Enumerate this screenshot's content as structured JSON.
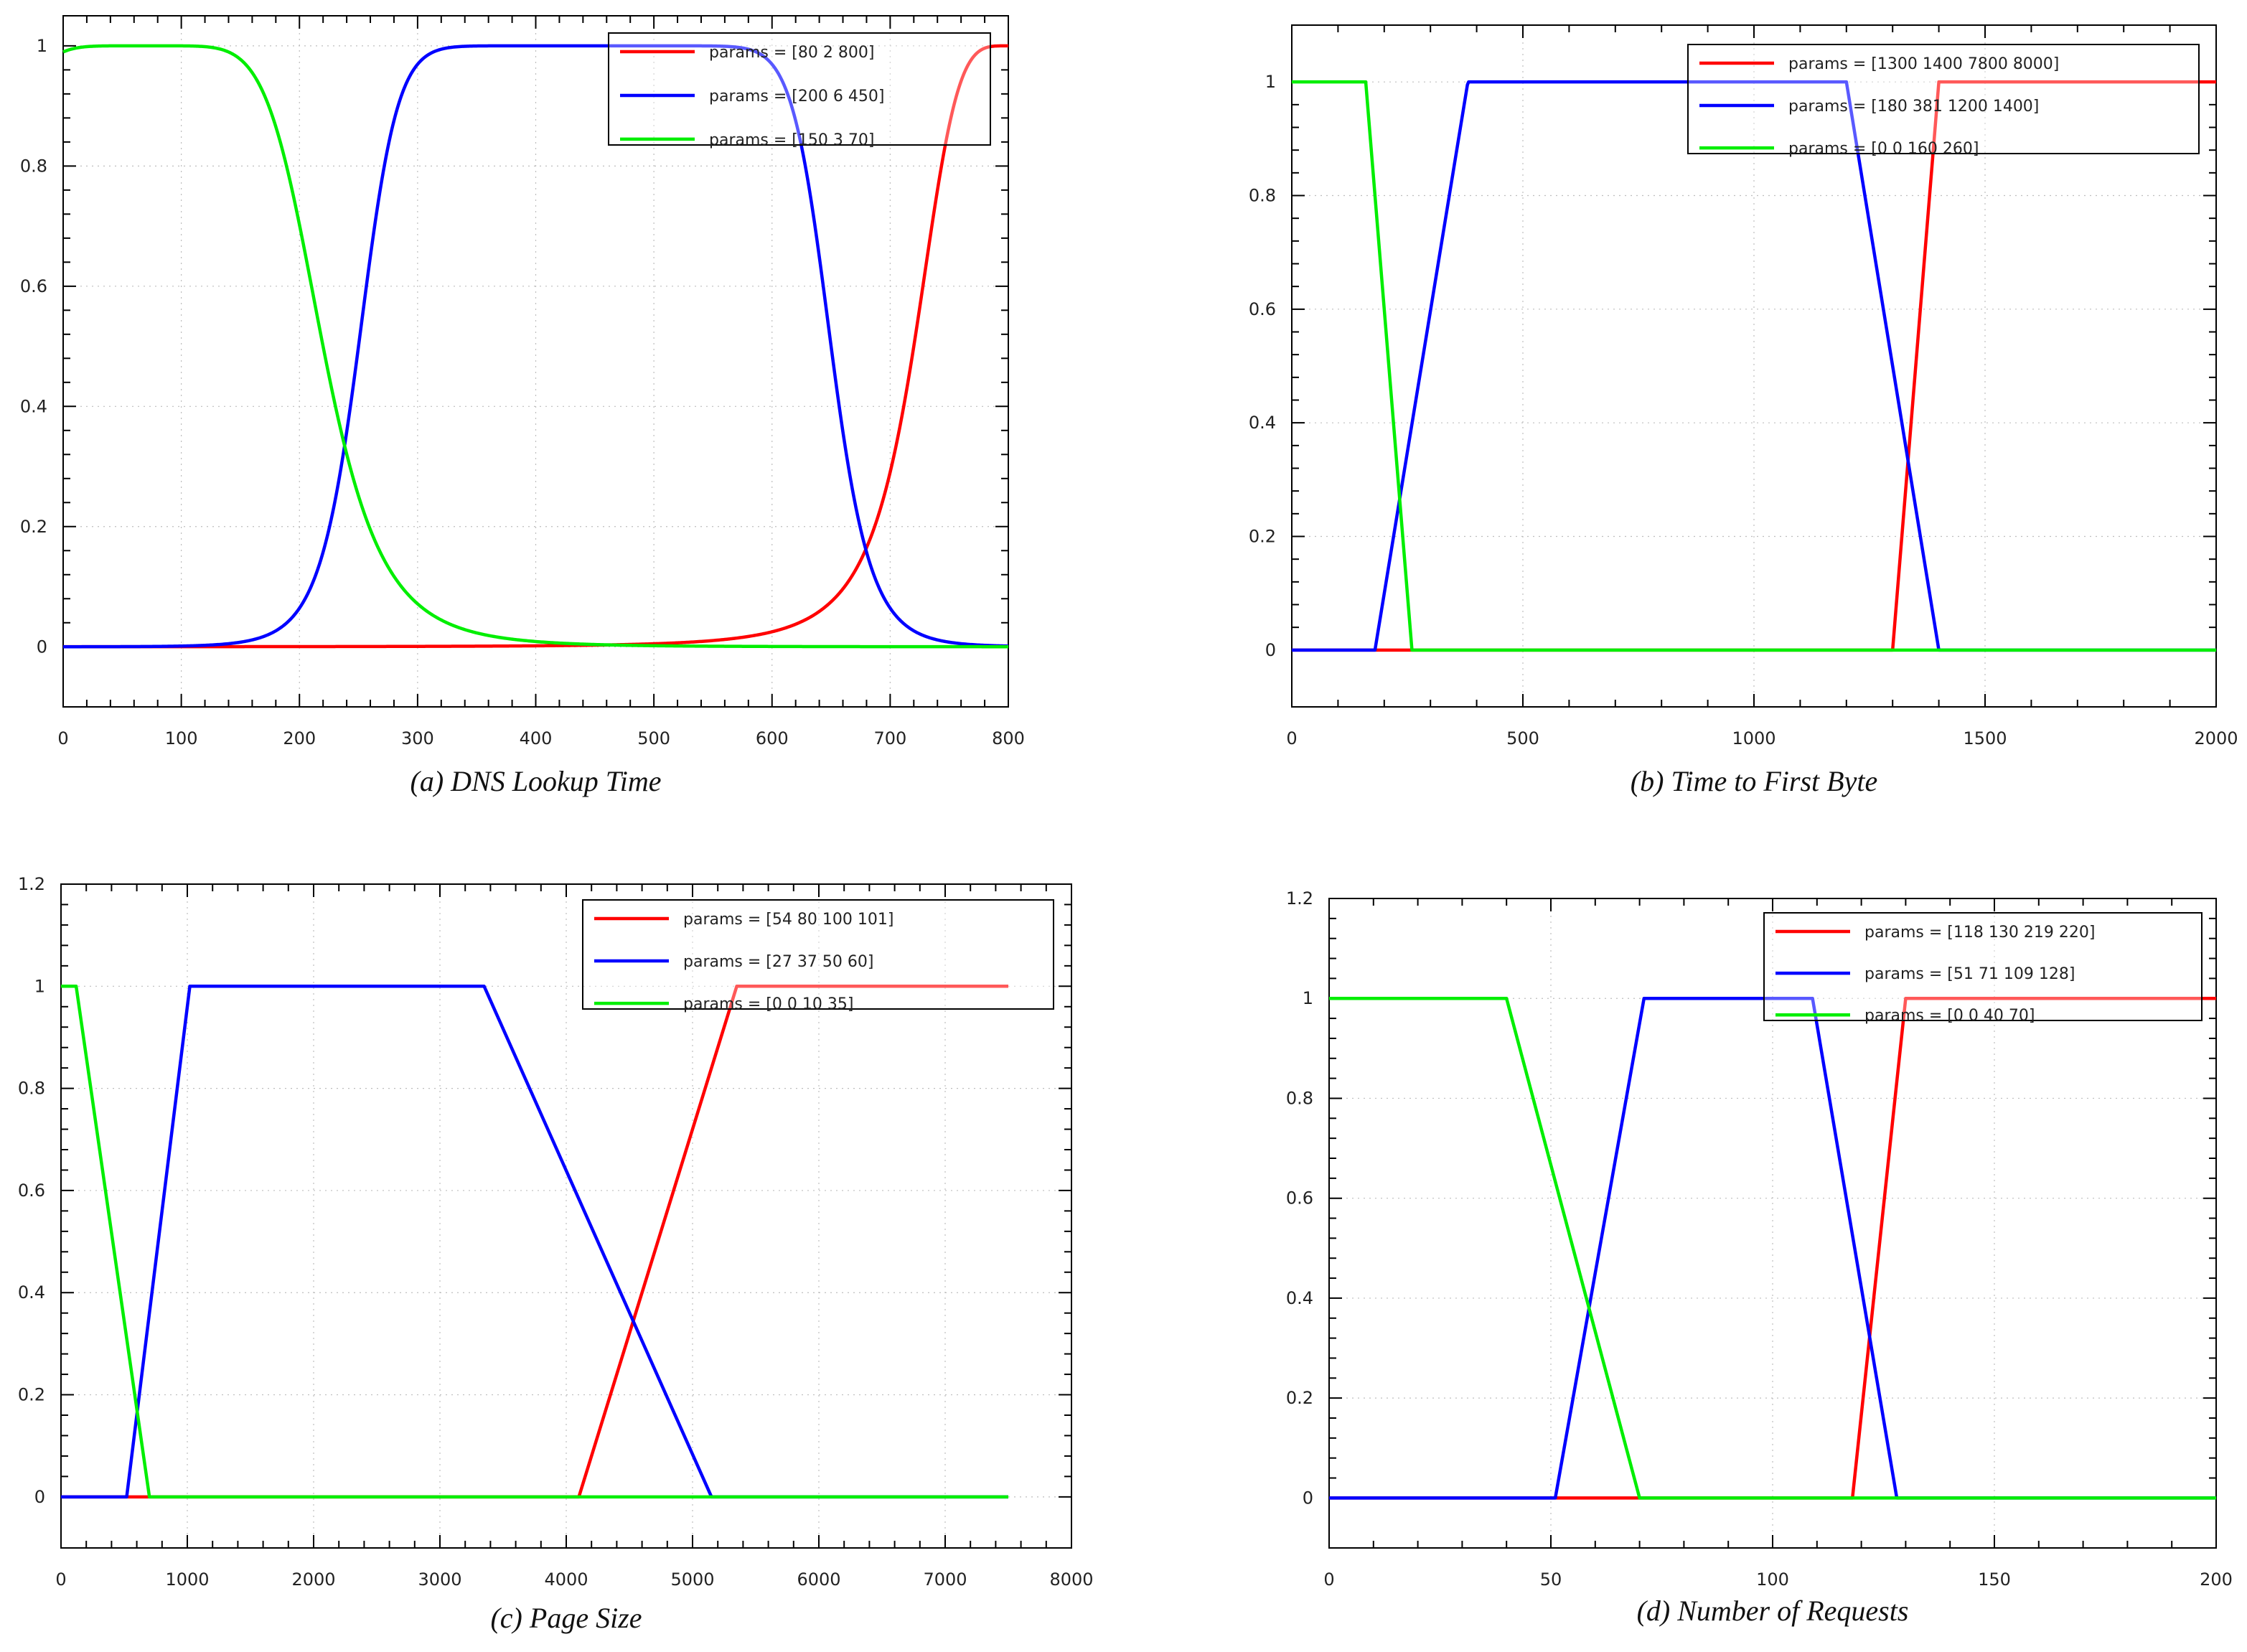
{
  "chart_data": [
    {
      "type": "line",
      "caption": "(a) DNS Lookup Time",
      "xlim": [
        0,
        800
      ],
      "ylim": [
        -0.1,
        1.05
      ],
      "xticks": [
        0,
        100,
        200,
        300,
        400,
        500,
        600,
        700,
        800
      ],
      "yticks": [
        0,
        0.2,
        0.4,
        0.6,
        0.8,
        1
      ],
      "legend_position": "top-right",
      "membership": "sigmoid-bell",
      "series": [
        {
          "name": "params = [80 2 800]",
          "color": "#ff0000",
          "kind": "gbell",
          "params": [
            80,
            2,
            800
          ]
        },
        {
          "name": "params = [200 6 450]",
          "color": "#0000ff",
          "kind": "gbell",
          "params": [
            200,
            6,
            450
          ]
        },
        {
          "name": "params = [150 3 70]",
          "color": "#00ee00",
          "kind": "gbell",
          "params": [
            150,
            3,
            70
          ]
        }
      ]
    },
    {
      "type": "line",
      "caption": "(b) Time to First Byte",
      "xlim": [
        0,
        2000
      ],
      "ylim": [
        -0.1,
        1.1
      ],
      "xticks": [
        0,
        500,
        1000,
        1500,
        2000
      ],
      "yticks": [
        0,
        0.2,
        0.4,
        0.6,
        0.8,
        1
      ],
      "legend_position": "top-right",
      "membership": "trapezoid",
      "series": [
        {
          "name": "params = [1300 1400 7800 8000]",
          "color": "#ff0000",
          "kind": "trap",
          "params": [
            1300,
            1400,
            7800,
            8000
          ]
        },
        {
          "name": "params = [180 381 1200 1400]",
          "color": "#0000ff",
          "kind": "trap",
          "params": [
            180,
            381,
            1200,
            1400
          ]
        },
        {
          "name": "params = [0 0 160 260]",
          "color": "#00ee00",
          "kind": "trap",
          "params": [
            0,
            0,
            160,
            260
          ]
        }
      ]
    },
    {
      "type": "line",
      "caption": "(c) Page Size",
      "xlim": [
        0,
        8000
      ],
      "ylim": [
        -0.1,
        1.2
      ],
      "xticks": [
        0,
        1000,
        2000,
        3000,
        4000,
        5000,
        6000,
        7000,
        8000
      ],
      "yticks": [
        0,
        0.2,
        0.4,
        0.6,
        0.8,
        1,
        1.2
      ],
      "legend_position": "top-right",
      "membership": "trapezoid",
      "series": [
        {
          "name": "params = [54 80 100 101]",
          "color": "#ff0000",
          "kind": "poly",
          "points": [
            [
              0,
              0
            ],
            [
              4100,
              0
            ],
            [
              5350,
              1
            ],
            [
              7500,
              1
            ]
          ]
        },
        {
          "name": "params = [27 37 50 60]",
          "color": "#0000ff",
          "kind": "poly",
          "points": [
            [
              0,
              0
            ],
            [
              520,
              0
            ],
            [
              1020,
              1
            ],
            [
              3350,
              1
            ],
            [
              5150,
              0
            ],
            [
              7500,
              0
            ]
          ]
        },
        {
          "name": "params = [0 0 10 35]",
          "color": "#00ee00",
          "kind": "poly",
          "points": [
            [
              0,
              1
            ],
            [
              120,
              1
            ],
            [
              700,
              0
            ],
            [
              7500,
              0
            ]
          ]
        }
      ]
    },
    {
      "type": "line",
      "caption": "(d) Number of Requests",
      "xlim": [
        0,
        200
      ],
      "ylim": [
        -0.1,
        1.2
      ],
      "xticks": [
        0,
        50,
        100,
        150,
        200
      ],
      "yticks": [
        0,
        0.2,
        0.4,
        0.6,
        0.8,
        1,
        1.2
      ],
      "legend_position": "top-right",
      "membership": "trapezoid",
      "series": [
        {
          "name": "params = [118 130 219 220]",
          "color": "#ff0000",
          "kind": "trap",
          "params": [
            118,
            130,
            219,
            220
          ]
        },
        {
          "name": "params = [51 71 109 128]",
          "color": "#0000ff",
          "kind": "trap",
          "params": [
            51,
            71,
            109,
            128
          ]
        },
        {
          "name": "params = [0 0 40 70]",
          "color": "#00ee00",
          "kind": "trap",
          "params": [
            0,
            0,
            40,
            70
          ]
        }
      ]
    }
  ]
}
